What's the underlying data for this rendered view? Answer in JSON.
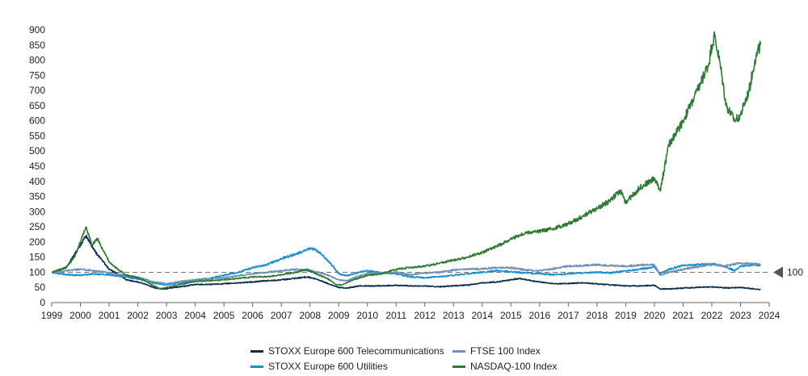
{
  "chart_data": {
    "type": "line",
    "title": "",
    "xlabel": "",
    "ylabel": "",
    "xlim": [
      1999,
      2024
    ],
    "ylim": [
      0,
      900
    ],
    "x_ticks": [
      "1999",
      "2000",
      "2001",
      "2002",
      "2003",
      "2004",
      "2005",
      "2006",
      "2007",
      "2008",
      "2009",
      "2010",
      "2011",
      "2012",
      "2013",
      "2014",
      "2015",
      "2016",
      "2017",
      "2018",
      "2019",
      "2020",
      "2021",
      "2022",
      "2023",
      "2024"
    ],
    "y_ticks": [
      "0",
      "50",
      "100",
      "150",
      "200",
      "250",
      "300",
      "350",
      "400",
      "450",
      "500",
      "550",
      "600",
      "650",
      "700",
      "750",
      "800",
      "850",
      "900"
    ],
    "reference_line": {
      "value": 100,
      "label": "100"
    },
    "series": [
      {
        "name": "STOXX Europe 600 Telecommunications",
        "color": "#0b2c4a",
        "points": [
          [
            1999,
            100
          ],
          [
            1999.5,
            115
          ],
          [
            1999.9,
            175
          ],
          [
            2000.2,
            220
          ],
          [
            2000.5,
            170
          ],
          [
            2000.8,
            135
          ],
          [
            2001,
            110
          ],
          [
            2001.3,
            95
          ],
          [
            2001.6,
            75
          ],
          [
            2001.9,
            70
          ],
          [
            2002.3,
            60
          ],
          [
            2002.6,
            48
          ],
          [
            2002.9,
            45
          ],
          [
            2003.3,
            50
          ],
          [
            2003.7,
            55
          ],
          [
            2004,
            60
          ],
          [
            2004.5,
            60
          ],
          [
            2005,
            62
          ],
          [
            2005.5,
            65
          ],
          [
            2006,
            68
          ],
          [
            2006.5,
            72
          ],
          [
            2007,
            75
          ],
          [
            2007.5,
            80
          ],
          [
            2007.9,
            85
          ],
          [
            2008.3,
            75
          ],
          [
            2008.7,
            60
          ],
          [
            2009,
            50
          ],
          [
            2009.3,
            48
          ],
          [
            2009.7,
            55
          ],
          [
            2010,
            55
          ],
          [
            2010.5,
            55
          ],
          [
            2011,
            57
          ],
          [
            2011.5,
            55
          ],
          [
            2012,
            55
          ],
          [
            2012.5,
            52
          ],
          [
            2013,
            55
          ],
          [
            2013.5,
            58
          ],
          [
            2014,
            65
          ],
          [
            2014.5,
            68
          ],
          [
            2015,
            75
          ],
          [
            2015.3,
            80
          ],
          [
            2015.7,
            72
          ],
          [
            2016,
            68
          ],
          [
            2016.5,
            62
          ],
          [
            2017,
            63
          ],
          [
            2017.5,
            65
          ],
          [
            2018,
            62
          ],
          [
            2018.5,
            58
          ],
          [
            2019,
            55
          ],
          [
            2019.5,
            55
          ],
          [
            2020,
            57
          ],
          [
            2020.2,
            45
          ],
          [
            2020.5,
            45
          ],
          [
            2021,
            48
          ],
          [
            2021.5,
            50
          ],
          [
            2022,
            52
          ],
          [
            2022.5,
            48
          ],
          [
            2023,
            50
          ],
          [
            2023.5,
            45
          ],
          [
            2023.7,
            43
          ]
        ]
      },
      {
        "name": "STOXX Europe 600 Utilities",
        "color": "#1a8fd1",
        "points": [
          [
            1999,
            100
          ],
          [
            1999.5,
            92
          ],
          [
            2000,
            90
          ],
          [
            2000.5,
            95
          ],
          [
            2001,
            92
          ],
          [
            2001.5,
            85
          ],
          [
            2002,
            78
          ],
          [
            2002.5,
            65
          ],
          [
            2003,
            58
          ],
          [
            2003.5,
            65
          ],
          [
            2004,
            75
          ],
          [
            2004.5,
            80
          ],
          [
            2005,
            90
          ],
          [
            2005.5,
            100
          ],
          [
            2006,
            115
          ],
          [
            2006.5,
            125
          ],
          [
            2007,
            145
          ],
          [
            2007.5,
            160
          ],
          [
            2007.9,
            175
          ],
          [
            2008.1,
            178
          ],
          [
            2008.4,
            160
          ],
          [
            2008.8,
            120
          ],
          [
            2009,
            95
          ],
          [
            2009.3,
            88
          ],
          [
            2009.7,
            100
          ],
          [
            2010,
            105
          ],
          [
            2010.5,
            98
          ],
          [
            2011,
            95
          ],
          [
            2011.5,
            85
          ],
          [
            2012,
            82
          ],
          [
            2012.5,
            85
          ],
          [
            2013,
            90
          ],
          [
            2013.5,
            95
          ],
          [
            2014,
            100
          ],
          [
            2014.5,
            105
          ],
          [
            2015,
            102
          ],
          [
            2015.5,
            98
          ],
          [
            2016,
            95
          ],
          [
            2016.5,
            92
          ],
          [
            2017,
            95
          ],
          [
            2017.5,
            98
          ],
          [
            2018,
            100
          ],
          [
            2018.5,
            98
          ],
          [
            2019,
            105
          ],
          [
            2019.5,
            110
          ],
          [
            2020,
            118
          ],
          [
            2020.2,
            95
          ],
          [
            2020.5,
            110
          ],
          [
            2021,
            122
          ],
          [
            2021.5,
            125
          ],
          [
            2022,
            128
          ],
          [
            2022.5,
            118
          ],
          [
            2022.8,
            105
          ],
          [
            2023,
            120
          ],
          [
            2023.5,
            125
          ],
          [
            2023.7,
            122
          ]
        ]
      },
      {
        "name": "FTSE 100 Index",
        "color": "#6f8fb3",
        "points": [
          [
            1999,
            100
          ],
          [
            1999.5,
            105
          ],
          [
            2000,
            110
          ],
          [
            2000.5,
            105
          ],
          [
            2001,
            98
          ],
          [
            2001.5,
            90
          ],
          [
            2002,
            85
          ],
          [
            2002.5,
            70
          ],
          [
            2003,
            62
          ],
          [
            2003.5,
            70
          ],
          [
            2004,
            75
          ],
          [
            2004.5,
            78
          ],
          [
            2005,
            82
          ],
          [
            2005.5,
            88
          ],
          [
            2006,
            95
          ],
          [
            2006.5,
            100
          ],
          [
            2007,
            105
          ],
          [
            2007.5,
            110
          ],
          [
            2008,
            105
          ],
          [
            2008.5,
            95
          ],
          [
            2009,
            75
          ],
          [
            2009.3,
            72
          ],
          [
            2009.7,
            88
          ],
          [
            2010,
            95
          ],
          [
            2010.5,
            98
          ],
          [
            2011,
            100
          ],
          [
            2011.5,
            92
          ],
          [
            2012,
            98
          ],
          [
            2012.5,
            100
          ],
          [
            2013,
            108
          ],
          [
            2013.5,
            110
          ],
          [
            2014,
            112
          ],
          [
            2014.5,
            115
          ],
          [
            2015,
            115
          ],
          [
            2015.5,
            108
          ],
          [
            2016,
            105
          ],
          [
            2016.5,
            112
          ],
          [
            2017,
            120
          ],
          [
            2017.5,
            122
          ],
          [
            2018,
            125
          ],
          [
            2018.5,
            122
          ],
          [
            2019,
            120
          ],
          [
            2019.5,
            124
          ],
          [
            2020,
            125
          ],
          [
            2020.2,
            90
          ],
          [
            2020.5,
            100
          ],
          [
            2021,
            110
          ],
          [
            2021.5,
            118
          ],
          [
            2022,
            125
          ],
          [
            2022.5,
            122
          ],
          [
            2023,
            130
          ],
          [
            2023.5,
            128
          ],
          [
            2023.7,
            126
          ]
        ]
      },
      {
        "name": "NASDAQ-100 Index",
        "color": "#2e7a32",
        "points": [
          [
            1999,
            100
          ],
          [
            1999.5,
            115
          ],
          [
            1999.8,
            150
          ],
          [
            2000,
            200
          ],
          [
            2000.2,
            250
          ],
          [
            2000.4,
            190
          ],
          [
            2000.6,
            210
          ],
          [
            2000.8,
            170
          ],
          [
            2001,
            135
          ],
          [
            2001.3,
            110
          ],
          [
            2001.6,
            90
          ],
          [
            2001.9,
            85
          ],
          [
            2002.2,
            75
          ],
          [
            2002.5,
            58
          ],
          [
            2002.8,
            45
          ],
          [
            2003,
            50
          ],
          [
            2003.5,
            60
          ],
          [
            2004,
            70
          ],
          [
            2004.5,
            72
          ],
          [
            2005,
            75
          ],
          [
            2005.5,
            80
          ],
          [
            2006,
            85
          ],
          [
            2006.5,
            85
          ],
          [
            2007,
            92
          ],
          [
            2007.5,
            100
          ],
          [
            2007.9,
            110
          ],
          [
            2008.2,
            95
          ],
          [
            2008.6,
            80
          ],
          [
            2008.9,
            60
          ],
          [
            2009.1,
            58
          ],
          [
            2009.5,
            75
          ],
          [
            2010,
            90
          ],
          [
            2010.5,
            95
          ],
          [
            2011,
            110
          ],
          [
            2011.5,
            115
          ],
          [
            2012,
            120
          ],
          [
            2012.5,
            130
          ],
          [
            2013,
            140
          ],
          [
            2013.5,
            150
          ],
          [
            2014,
            165
          ],
          [
            2014.5,
            185
          ],
          [
            2015,
            210
          ],
          [
            2015.5,
            230
          ],
          [
            2016,
            235
          ],
          [
            2016.5,
            245
          ],
          [
            2017,
            260
          ],
          [
            2017.5,
            285
          ],
          [
            2018,
            310
          ],
          [
            2018.5,
            340
          ],
          [
            2018.8,
            370
          ],
          [
            2019,
            330
          ],
          [
            2019.5,
            380
          ],
          [
            2020,
            410
          ],
          [
            2020.2,
            370
          ],
          [
            2020.5,
            520
          ],
          [
            2021,
            600
          ],
          [
            2021.5,
            700
          ],
          [
            2021.9,
            790
          ],
          [
            2022,
            850
          ],
          [
            2022.1,
            880
          ],
          [
            2022.3,
            780
          ],
          [
            2022.5,
            650
          ],
          [
            2022.8,
            600
          ],
          [
            2023,
            620
          ],
          [
            2023.3,
            700
          ],
          [
            2023.5,
            800
          ],
          [
            2023.7,
            850
          ]
        ]
      }
    ]
  },
  "legend": {
    "items": [
      {
        "label": "STOXX Europe 600 Telecommunications",
        "color": "#0b2c4a"
      },
      {
        "label": "FTSE 100 Index",
        "color": "#6f8fb3"
      },
      {
        "label": "STOXX Europe 600 Utilities",
        "color": "#1a8fd1"
      },
      {
        "label": "NASDAQ-100 Index",
        "color": "#2e7a32"
      }
    ]
  }
}
